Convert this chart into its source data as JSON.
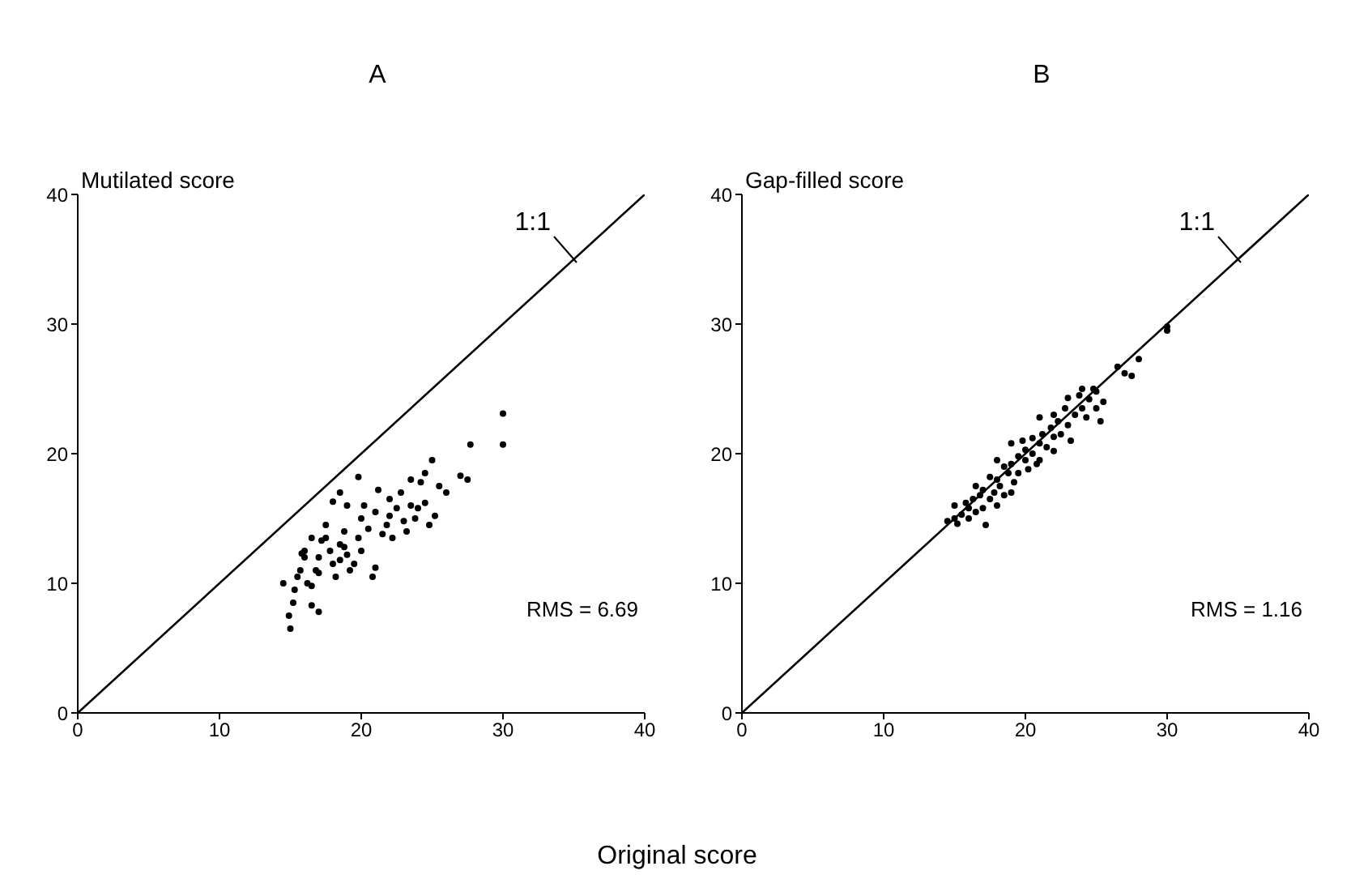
{
  "chart_data": [
    {
      "type": "scatter",
      "title": "A",
      "ylabel": "Mutilated score",
      "xlabel": "Original score",
      "xlim": [
        0,
        40
      ],
      "ylim": [
        0,
        40
      ],
      "xticks": [
        0,
        10,
        20,
        30,
        40
      ],
      "yticks": [
        0,
        10,
        20,
        30,
        40
      ],
      "annotations": [
        "RMS = 6.69"
      ],
      "series": [
        {
          "marker": "circle",
          "color": "#000000",
          "x": [
            15,
            14.9,
            15.2,
            17,
            16.5,
            14.5,
            15.3,
            15.5,
            15.7,
            15.8,
            16,
            16.2,
            16.5,
            16.8,
            17,
            17.2,
            17.5,
            17.8,
            18,
            18.2,
            18.5,
            18.5,
            18.8,
            19,
            19.2,
            19.5,
            19.8,
            20,
            20,
            20.2,
            20.5,
            20.8,
            21,
            21,
            21.2,
            21.5,
            21.8,
            22,
            22,
            22.2,
            22.5,
            22.8,
            23,
            23.2,
            23.5,
            23.5,
            23.8,
            24,
            24.2,
            24.5,
            24.5,
            24.8,
            25,
            25.2,
            25.5,
            19,
            18.5,
            19.8,
            18,
            17.5,
            16.5,
            26,
            27,
            27.5,
            27.7,
            30,
            30,
            16,
            17,
            18.8
          ],
          "values": [
            6.5,
            7.5,
            8.5,
            7.8,
            8.3,
            10,
            9.5,
            10.5,
            11,
            12.3,
            12.5,
            10,
            9.8,
            11,
            12,
            13.3,
            13.5,
            12.5,
            11.5,
            10.5,
            11.8,
            13,
            14,
            12.2,
            11,
            11.5,
            13.5,
            12.5,
            15,
            16,
            14.2,
            10.5,
            11.2,
            15.5,
            17.2,
            13.8,
            14.5,
            16.5,
            15.2,
            13.5,
            15.8,
            17,
            14.8,
            14,
            16,
            18,
            15,
            15.8,
            17.8,
            18.5,
            16.2,
            14.5,
            19.5,
            15.2,
            17.5,
            16,
            17,
            18.2,
            16.3,
            14.5,
            13.5,
            17,
            18.3,
            18,
            20.7,
            23.1,
            20.7,
            12,
            10.8,
            12.8
          ]
        },
        {
          "name": "1:1",
          "type": "line",
          "color": "#000000",
          "x": [
            0,
            40
          ],
          "values": [
            0,
            40
          ]
        }
      ]
    },
    {
      "type": "scatter",
      "title": "B",
      "ylabel": "Gap-filled score",
      "xlim": [
        0,
        40
      ],
      "ylim": [
        0,
        40
      ],
      "xticks": [
        0,
        10,
        20,
        30,
        40
      ],
      "yticks": [
        0,
        10,
        20,
        30,
        40
      ],
      "annotations": [
        "RMS = 1.16"
      ],
      "series": [
        {
          "marker": "circle",
          "color": "#000000",
          "x": [
            14.5,
            15,
            15,
            15.2,
            15.5,
            15.8,
            16,
            16,
            16.3,
            16.5,
            16.8,
            17,
            17,
            17.2,
            17.5,
            17.5,
            17.8,
            18,
            18,
            18.2,
            18.5,
            18.5,
            18.8,
            19,
            19,
            19.2,
            19.5,
            19.5,
            19.8,
            20,
            20,
            20.2,
            20.5,
            20.5,
            20.8,
            21,
            21,
            21.2,
            21.5,
            21.8,
            22,
            22,
            22.3,
            22.5,
            22.8,
            23,
            23,
            23.2,
            23.5,
            23.8,
            24,
            24,
            24.3,
            24.5,
            24.8,
            25,
            25,
            25.3,
            25.5,
            26.5,
            27,
            27.5,
            28,
            30,
            30,
            18,
            19,
            16.5,
            22,
            21
          ],
          "values": [
            14.8,
            15,
            16,
            14.6,
            15.3,
            16.2,
            15,
            15.8,
            16.5,
            15.5,
            16.8,
            15.8,
            17.2,
            14.5,
            16.5,
            18.2,
            17,
            16,
            18,
            17.5,
            19,
            16.8,
            18.5,
            20.8,
            19.2,
            17.8,
            19.8,
            18.5,
            21,
            19.5,
            20.3,
            18.8,
            20,
            21.2,
            19.2,
            20.8,
            22.8,
            21.5,
            20.5,
            22,
            21.3,
            23,
            22.5,
            21.5,
            23.5,
            22.2,
            24.3,
            21,
            23,
            24.5,
            23.5,
            25,
            22.8,
            24.2,
            25,
            23.5,
            24.8,
            22.5,
            24,
            26.7,
            26.2,
            26,
            27.3,
            29.8,
            29.5,
            19.5,
            17,
            17.5,
            20.2,
            19.5
          ]
        },
        {
          "name": "1:1",
          "type": "line",
          "color": "#000000",
          "x": [
            0,
            40
          ],
          "values": [
            0,
            40
          ]
        }
      ]
    }
  ]
}
